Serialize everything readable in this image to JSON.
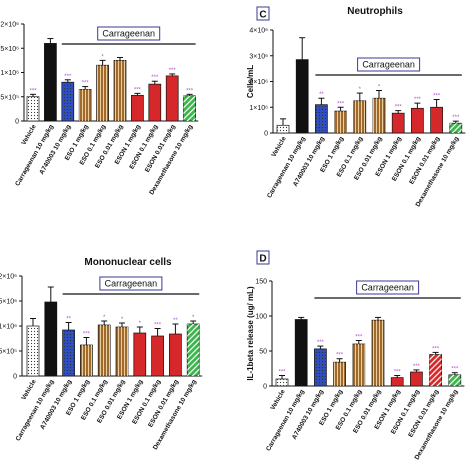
{
  "chart_data": [
    {
      "type": "bar",
      "categories": [
        "Vehicle",
        "Carrageenan 10 mg/kg",
        "A740003 10 mg/kg",
        "ESO 1 mg/kg",
        "ESO 0.1 mg/kg",
        "ESO 0.01 mg/kg",
        "ESON 1 mg/kg",
        "ESON 0.1 mg/kg",
        "ESON 0.01 mg/kg",
        "Dexamethasone 10 mg/kg"
      ],
      "values": [
        500000,
        1600000,
        800000,
        650000,
        1150000,
        1250000,
        530000,
        760000,
        930000,
        520000
      ],
      "errors": [
        50000,
        100000,
        50000,
        60000,
        100000,
        60000,
        40000,
        60000,
        40000,
        30000
      ],
      "colors": [
        "#ffffff",
        "#111111",
        "#2f4fbf",
        "#a0692e",
        "#a0692e",
        "#a0692e",
        "#d6282a",
        "#d6282a",
        "#d6282a",
        "#39b54a"
      ],
      "hatch": [
        "dots",
        null,
        "dots",
        "stripes",
        "stripes",
        "stripes",
        null,
        null,
        null,
        "diagonal"
      ],
      "significance": [
        "***",
        null,
        "***",
        "***",
        "*",
        null,
        "***",
        "***",
        "***",
        "***"
      ],
      "group_label": "Carrageenan",
      "ylim": [
        0,
        2000000
      ],
      "yticks": [
        {
          "value": 0,
          "label": "0"
        },
        {
          "value": 500000,
          "label": "5×10⁵"
        },
        {
          "value": 1000000,
          "label": "1×10⁶"
        },
        {
          "value": 1500000,
          "label": "1.5×10⁶"
        },
        {
          "value": 2000000,
          "label": "2×10⁶"
        }
      ]
    },
    {
      "type": "bar",
      "title": "Neutrophils",
      "panel_label": "C",
      "ylabel": "Cells/mL",
      "categories": [
        "Vehicle",
        "Carrageenan 10 mg/kg",
        "A740003 10 mg/kg",
        "ESO 1 mg/kg",
        "ESO 0.1 mg/kg",
        "ESO 0.01 mg/kg",
        "ESON 1 mg/kg",
        "ESON 0.1 mg/kg",
        "ESON 0.01 mg/kg",
        "Dexamethasone 10 mg/kg"
      ],
      "values": [
        300000,
        2850000,
        1100000,
        850000,
        1250000,
        1350000,
        770000,
        960000,
        1000000,
        380000
      ],
      "errors": [
        250000,
        850000,
        250000,
        150000,
        300000,
        300000,
        100000,
        200000,
        300000,
        80000
      ],
      "colors": [
        "#ffffff",
        "#111111",
        "#2f4fbf",
        "#a0692e",
        "#a0692e",
        "#a0692e",
        "#d6282a",
        "#d6282a",
        "#d6282a",
        "#39b54a"
      ],
      "hatch": [
        "dots",
        null,
        "dots",
        "stripes",
        "stripes",
        "stripes",
        null,
        null,
        null,
        "diagonal"
      ],
      "significance": [
        null,
        null,
        "**",
        "***",
        "*",
        "*",
        "***",
        "***",
        "***",
        "***"
      ],
      "group_label": "Carrageenan",
      "ylim": [
        0,
        4000000
      ],
      "yticks": [
        {
          "value": 0,
          "label": "0"
        },
        {
          "value": 1000000,
          "label": "1×10⁶"
        },
        {
          "value": 2000000,
          "label": "2×10⁶"
        },
        {
          "value": 3000000,
          "label": "3×10⁶"
        },
        {
          "value": 4000000,
          "label": "4×10⁶"
        }
      ]
    },
    {
      "type": "bar",
      "title": "Mononuclear cells",
      "categories": [
        "Vehicle",
        "Carrageenan 10 mg/kg",
        "A740003 10 mg/kg",
        "ESO 1 mg/kg",
        "ESO 0.1 mg/kg",
        "ESO 0.01 mg/kg",
        "ESON 1 mg/kg",
        "ESON 0.1 mg/kg",
        "ESON 0.01 mg/kg",
        "Dexamethasone 10 mg/kg"
      ],
      "values": [
        1000000,
        1480000,
        920000,
        620000,
        1020000,
        980000,
        860000,
        800000,
        840000,
        1040000
      ],
      "errors": [
        150000,
        300000,
        150000,
        150000,
        80000,
        80000,
        120000,
        150000,
        200000,
        60000
      ],
      "colors": [
        "#ffffff",
        "#111111",
        "#2f4fbf",
        "#a0692e",
        "#a0692e",
        "#a0692e",
        "#d6282a",
        "#d6282a",
        "#d6282a",
        "#39b54a"
      ],
      "hatch": [
        "dots",
        null,
        "dots",
        "stripes",
        "stripes",
        "stripes",
        null,
        null,
        null,
        "diagonal"
      ],
      "significance": [
        null,
        null,
        "**",
        "***",
        "*",
        "*",
        "*",
        "***",
        "**",
        "*"
      ],
      "group_label": "Carrageenan",
      "ylim": [
        0,
        2000000
      ],
      "yticks": [
        {
          "value": 0,
          "label": "0"
        },
        {
          "value": 500000,
          "label": "5×10⁵"
        },
        {
          "value": 1000000,
          "label": "1×10⁶"
        },
        {
          "value": 1500000,
          "label": "1.5×10⁶"
        },
        {
          "value": 2000000,
          "label": "2×10⁶"
        }
      ]
    },
    {
      "type": "bar",
      "panel_label": "D",
      "ylabel": "IL-1beta release (ug/ mL)",
      "categories": [
        "Vehicle",
        "Carrageenan 10 mg/kg",
        "A740003 10 mg/kg",
        "ESO 1 mg/kg",
        "ESO 0.1 mg/kg",
        "ESO 0.01 mg/kg",
        "ESON 1 mg/kg",
        "ESON 0.1 mg/kg",
        "ESON 0.01 mg/kg",
        "Dexamethasone 10 mg/kg"
      ],
      "values": [
        10,
        95,
        53,
        34,
        60,
        94,
        12,
        20,
        45,
        16
      ],
      "errors": [
        5,
        3,
        4,
        5,
        5,
        4,
        3,
        3,
        3,
        3
      ],
      "colors": [
        "#ffffff",
        "#111111",
        "#2f4fbf",
        "#a0692e",
        "#a0692e",
        "#a0692e",
        "#d6282a",
        "#d6282a",
        "#d6282a",
        "#39b54a"
      ],
      "hatch": [
        "dots",
        null,
        "dots",
        "stripes",
        "stripes",
        "stripes",
        null,
        null,
        "diagonal",
        "diagonal"
      ],
      "significance": [
        "***",
        null,
        "***",
        "***",
        "***",
        null,
        "***",
        "***",
        "***",
        "***"
      ],
      "group_label": "Carrageenan",
      "ylim": [
        0,
        150
      ],
      "yticks": [
        0,
        50,
        100,
        150
      ]
    }
  ]
}
